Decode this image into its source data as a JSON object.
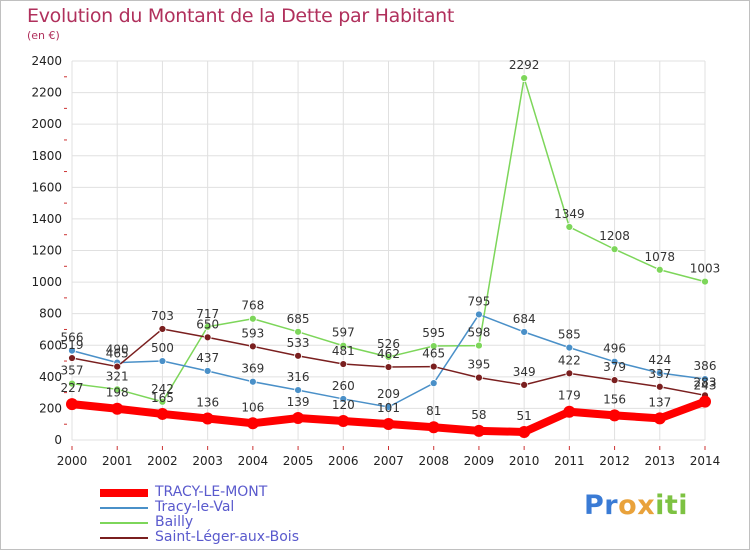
{
  "colors": {
    "title": "#b0305c",
    "legend_text": "#5a5acd",
    "grid": "#e0e0e0",
    "axis_text": "#222222",
    "tick_red": "#cc3333",
    "label_text": "#333333"
  },
  "chart_data": {
    "type": "line",
    "title": "Evolution du Montant de la Dette par Habitant",
    "subtitle": "(en €)",
    "xlabel": "",
    "ylabel": "",
    "ylim": [
      0,
      2400
    ],
    "yticks": [
      "0",
      "200",
      "400",
      "600",
      "800",
      "1000",
      "1200",
      "1400",
      "1600",
      "1800",
      "2000",
      "2200",
      "2400"
    ],
    "grid": true,
    "legend_position": "bottom-left",
    "x": [
      "2000",
      "2001",
      "2002",
      "2003",
      "2004",
      "2005",
      "2006",
      "2007",
      "2008",
      "2009",
      "2010",
      "2011",
      "2012",
      "2013",
      "2014"
    ],
    "series": [
      {
        "name": "TRACY-LE-MONT",
        "color": "#ff0000",
        "values": [
          227,
          198,
          165,
          136,
          106,
          139,
          120,
          101,
          81,
          58,
          51,
          179,
          156,
          137,
          243
        ],
        "labels": [
          "227",
          "198",
          "165",
          "136",
          "106",
          "139",
          "120",
          "101",
          "81",
          "58",
          "51",
          "179",
          "156",
          "137",
          "243"
        ]
      },
      {
        "name": "Tracy-le-Val",
        "color": "#4a90c8",
        "values": [
          566,
          490,
          500,
          437,
          369,
          316,
          260,
          209,
          360,
          795,
          684,
          585,
          496,
          424,
          386
        ],
        "labels": [
          "566",
          "490",
          "500",
          "437",
          "369",
          "316",
          "260",
          "209",
          "",
          "795",
          "684",
          "585",
          "496",
          "424",
          "386"
        ]
      },
      {
        "name": "Bailly",
        "color": "#7dd65a",
        "values": [
          357,
          321,
          242,
          717,
          768,
          685,
          597,
          526,
          595,
          598,
          2292,
          1349,
          1208,
          1078,
          1003
        ],
        "labels": [
          "357",
          "321",
          "242",
          "717",
          "768",
          "685",
          "597",
          "526",
          "595",
          "598",
          "2292",
          "1349",
          "1208",
          "1078",
          "1003"
        ]
      },
      {
        "name": "Saint-Léger-aux-Bois",
        "color": "#7a1f1f",
        "values": [
          519,
          465,
          703,
          650,
          593,
          533,
          481,
          462,
          465,
          395,
          349,
          422,
          379,
          337,
          283
        ],
        "labels": [
          "519",
          "465",
          "703",
          "650",
          "593",
          "533",
          "481",
          "462",
          "465",
          "395",
          "349",
          "422",
          "379",
          "337",
          "283"
        ]
      }
    ]
  },
  "logo": {
    "letters": [
      "P",
      "r",
      "o",
      "x",
      "i",
      "t",
      "i"
    ],
    "colors": [
      "#3a7bd5",
      "#3a7bd5",
      "#e9a23b",
      "#e9a23b",
      "#7dc242",
      "#7dc242",
      "#7dc242"
    ]
  }
}
